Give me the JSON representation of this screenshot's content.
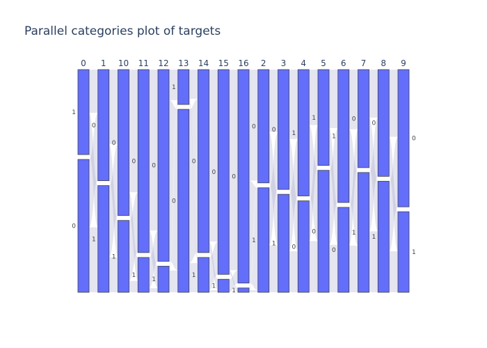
{
  "chart_data": {
    "type": "parallel_categories",
    "title": "Parallel categories plot of targets",
    "dimensions": [
      {
        "label": "0",
        "categories": [
          {
            "name": "1",
            "fraction": 0.39
          },
          {
            "name": "0",
            "fraction": 0.61
          }
        ]
      },
      {
        "label": "1",
        "categories": [
          {
            "name": "0",
            "fraction": 0.51
          },
          {
            "name": "1",
            "fraction": 0.49
          }
        ]
      },
      {
        "label": "10",
        "categories": [
          {
            "name": "0",
            "fraction": 0.67
          },
          {
            "name": "1",
            "fraction": 0.33
          }
        ]
      },
      {
        "label": "11",
        "categories": [
          {
            "name": "0",
            "fraction": 0.84
          },
          {
            "name": "1",
            "fraction": 0.16
          }
        ]
      },
      {
        "label": "12",
        "categories": [
          {
            "name": "0",
            "fraction": 0.88
          },
          {
            "name": "1",
            "fraction": 0.12
          }
        ]
      },
      {
        "label": "13",
        "categories": [
          {
            "name": "1",
            "fraction": 0.16
          },
          {
            "name": "0",
            "fraction": 0.84
          }
        ]
      },
      {
        "label": "14",
        "categories": [
          {
            "name": "0",
            "fraction": 0.84
          },
          {
            "name": "1",
            "fraction": 0.16
          }
        ]
      },
      {
        "label": "15",
        "categories": [
          {
            "name": "0",
            "fraction": 0.94
          },
          {
            "name": "1",
            "fraction": 0.06
          }
        ]
      },
      {
        "label": "16",
        "categories": [
          {
            "name": "0",
            "fraction": 0.98
          },
          {
            "name": "1",
            "fraction": 0.02
          }
        ]
      },
      {
        "label": "2",
        "categories": [
          {
            "name": "0",
            "fraction": 0.52
          },
          {
            "name": "1",
            "fraction": 0.48
          }
        ]
      },
      {
        "label": "3",
        "categories": [
          {
            "name": "0",
            "fraction": 0.55
          },
          {
            "name": "1",
            "fraction": 0.45
          }
        ]
      },
      {
        "label": "4",
        "categories": [
          {
            "name": "1",
            "fraction": 0.58
          },
          {
            "name": "0",
            "fraction": 0.42
          }
        ]
      },
      {
        "label": "5",
        "categories": [
          {
            "name": "1",
            "fraction": 0.44
          },
          {
            "name": "0",
            "fraction": 0.56
          }
        ]
      },
      {
        "label": "6",
        "categories": [
          {
            "name": "1",
            "fraction": 0.61
          },
          {
            "name": "0",
            "fraction": 0.39
          }
        ]
      },
      {
        "label": "7",
        "categories": [
          {
            "name": "0",
            "fraction": 0.45
          },
          {
            "name": "1",
            "fraction": 0.55
          }
        ]
      },
      {
        "label": "8",
        "categories": [
          {
            "name": "0",
            "fraction": 0.49
          },
          {
            "name": "1",
            "fraction": 0.51
          }
        ]
      },
      {
        "label": "9",
        "categories": [
          {
            "name": "0",
            "fraction": 0.63
          },
          {
            "name": "1",
            "fraction": 0.37
          }
        ]
      }
    ],
    "colors": {
      "bar": "#636efa",
      "ribbon": "#9fa2c7",
      "title": "#2a3f5f"
    }
  }
}
